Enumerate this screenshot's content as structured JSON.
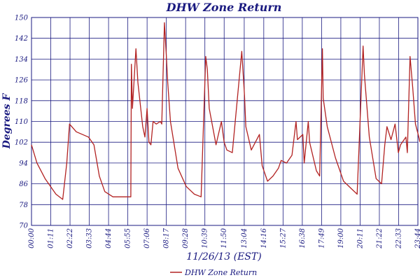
{
  "chart_data": {
    "type": "line",
    "title": "DHW Zone Return",
    "xlabel": "11/26/13 (EST)",
    "ylabel": "Degrees F",
    "ylim": [
      70,
      150
    ],
    "y_ticks": [
      "70",
      "78",
      "86",
      "94",
      "102",
      "110",
      "118",
      "126",
      "134",
      "142",
      "150"
    ],
    "x_ticks": [
      "00:00",
      "01:11",
      "02:22",
      "03:33",
      "04:44",
      "05:55",
      "07:06",
      "08:17",
      "09:28",
      "10:39",
      "11:50",
      "13:04",
      "14:16",
      "15:27",
      "16:38",
      "17:49",
      "19:00",
      "20:11",
      "21:22",
      "22:33",
      "23:44"
    ],
    "grid": true,
    "legend_position": "bottom",
    "colors": {
      "series": "#b22222",
      "grid": "#1a1a80",
      "text": "#1a1a80"
    },
    "series": [
      {
        "name": "DHW Zone Return",
        "x": [
          "00:00",
          "00:20",
          "00:50",
          "01:30",
          "01:55",
          "02:10",
          "02:20",
          "02:45",
          "03:30",
          "03:50",
          "04:10",
          "04:30",
          "05:00",
          "05:30",
          "05:55",
          "06:06",
          "06:08",
          "06:12",
          "06:25",
          "06:32",
          "06:50",
          "06:58",
          "07:06",
          "07:13",
          "07:20",
          "07:28",
          "07:40",
          "07:55",
          "08:00",
          "08:10",
          "08:17",
          "08:22",
          "08:32",
          "09:00",
          "09:30",
          "10:00",
          "10:25",
          "10:42",
          "10:48",
          "10:55",
          "11:20",
          "11:40",
          "11:50",
          "12:00",
          "12:20",
          "12:55",
          "13:05",
          "13:10",
          "13:30",
          "13:45",
          "14:00",
          "14:10",
          "14:30",
          "14:50",
          "15:10",
          "15:20",
          "15:40",
          "16:00",
          "16:15",
          "16:20",
          "16:40",
          "16:45",
          "17:00",
          "17:05",
          "17:30",
          "17:42",
          "17:52",
          "17:55",
          "18:10",
          "18:40",
          "19:10",
          "19:40",
          "20:00",
          "20:22",
          "20:27",
          "20:45",
          "21:10",
          "21:30",
          "21:42",
          "21:50",
          "22:05",
          "22:20",
          "22:32",
          "22:40",
          "23:00",
          "23:05",
          "23:15",
          "23:25",
          "23:35",
          "23:45",
          "23:52"
        ],
        "y": [
          101,
          94,
          88,
          82,
          80,
          94,
          109,
          106,
          104,
          101,
          89,
          83,
          81,
          81,
          81,
          81,
          132,
          115,
          138,
          125,
          108,
          104,
          115,
          102,
          101,
          110,
          109,
          110,
          109,
          148,
          135,
          125,
          110,
          92,
          85,
          82,
          81,
          135,
          130,
          115,
          101,
          110,
          102,
          99,
          98,
          137,
          120,
          108,
          99,
          102,
          105,
          93,
          87,
          89,
          92,
          95,
          94,
          97,
          110,
          103,
          105,
          94,
          110,
          102,
          91,
          89,
          138,
          119,
          108,
          96,
          87,
          84,
          82,
          139,
          128,
          104,
          88,
          86,
          101,
          108,
          103,
          109,
          98,
          101,
          104,
          98,
          135,
          123,
          109,
          105,
          102
        ]
      }
    ]
  }
}
